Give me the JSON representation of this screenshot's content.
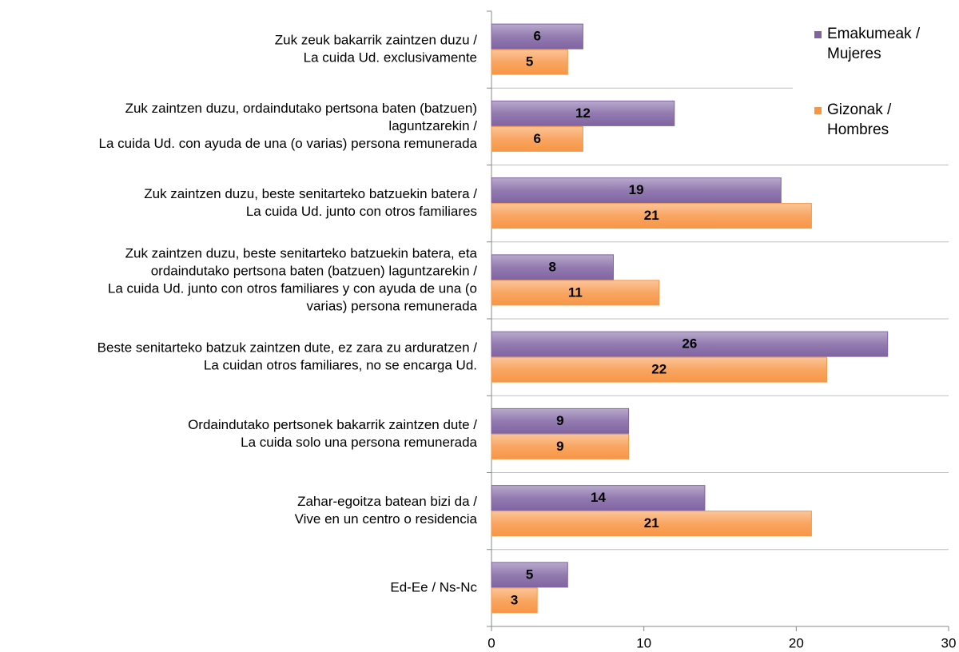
{
  "chart_data": {
    "type": "hbar",
    "categories": [
      [
        "Zuk zeuk bakarrik zaintzen duzu /",
        "La cuida Ud. exclusivamente"
      ],
      [
        "Zuk zaintzen duzu, ordaindutako pertsona baten (batzuen)",
        "laguntzarekin /",
        "La cuida Ud. con ayuda de una (o varias) persona remunerada"
      ],
      [
        "Zuk zaintzen duzu, beste senitarteko batzuekin batera /",
        "La cuida Ud. junto con otros familiares"
      ],
      [
        "Zuk zaintzen duzu, beste senitarteko batzuekin batera, eta",
        "ordaindutako pertsona baten (batzuen) laguntzarekin /",
        "La cuida Ud. junto con otros familiares y con ayuda de una (o",
        "varias) persona remunerada"
      ],
      [
        "Beste senitarteko batzuk zaintzen dute, ez zara zu arduratzen /",
        "La cuidan otros familiares, no se encarga Ud."
      ],
      [
        "Ordaindutako pertsonek bakarrik zaintzen dute /",
        "La cuida solo una persona remunerada"
      ],
      [
        "Zahar-egoitza batean bizi da /",
        "Vive en un centro o residencia"
      ],
      [
        "Ed-Ee / Ns-Nc"
      ]
    ],
    "series": [
      {
        "name": "Emakumeak / Mujeres",
        "color": "#8064a2",
        "values": [
          6,
          12,
          19,
          8,
          26,
          9,
          14,
          5
        ]
      },
      {
        "name": "Gizonak / Hombres",
        "color": "#f79646",
        "values": [
          5,
          6,
          21,
          11,
          22,
          9,
          21,
          3
        ]
      }
    ],
    "xlim": [
      0,
      30
    ],
    "xticks": [
      0,
      10,
      20,
      30
    ],
    "grid": true
  }
}
